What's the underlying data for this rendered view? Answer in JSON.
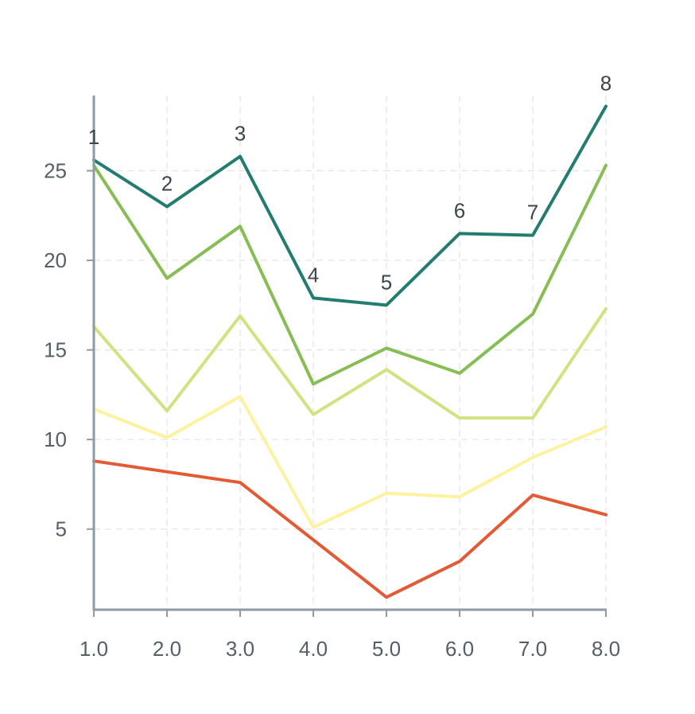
{
  "chart_data": {
    "type": "line",
    "title": "",
    "xlabel": "",
    "ylabel": "",
    "x": [
      1,
      2,
      3,
      4,
      5,
      6,
      7,
      8
    ],
    "x_tick_labels": [
      "1.0",
      "2.0",
      "3.0",
      "4.0",
      "5.0",
      "6.0",
      "7.0",
      "8.0"
    ],
    "y_ticks": [
      5,
      10,
      15,
      20,
      25
    ],
    "y_tick_labels": [
      "5",
      "10",
      "15",
      "20",
      "25"
    ],
    "xlim": [
      1,
      8
    ],
    "ylim": [
      0.5,
      29.2
    ],
    "grid": true,
    "legend": "none",
    "point_labels": [
      "1",
      "2",
      "3",
      "4",
      "5",
      "6",
      "7",
      "8"
    ],
    "series": [
      {
        "color": "#e45a35",
        "values": [
          8.8,
          8.2,
          7.6,
          4.4,
          1.2,
          3.2,
          6.9,
          5.8
        ]
      },
      {
        "color": "#fdf2a0",
        "values": [
          11.7,
          10.1,
          12.4,
          5.1,
          7.0,
          6.8,
          9.0,
          10.7
        ]
      },
      {
        "color": "#cfe381",
        "values": [
          16.3,
          11.6,
          16.9,
          11.4,
          13.9,
          11.2,
          11.2,
          17.3
        ]
      },
      {
        "color": "#86bd55",
        "values": [
          25.3,
          19.0,
          21.9,
          13.1,
          15.1,
          13.7,
          17.0,
          25.3
        ]
      },
      {
        "color": "#237d6e",
        "values": [
          25.6,
          23.0,
          25.8,
          17.9,
          17.5,
          21.5,
          21.4,
          28.6
        ]
      }
    ]
  }
}
